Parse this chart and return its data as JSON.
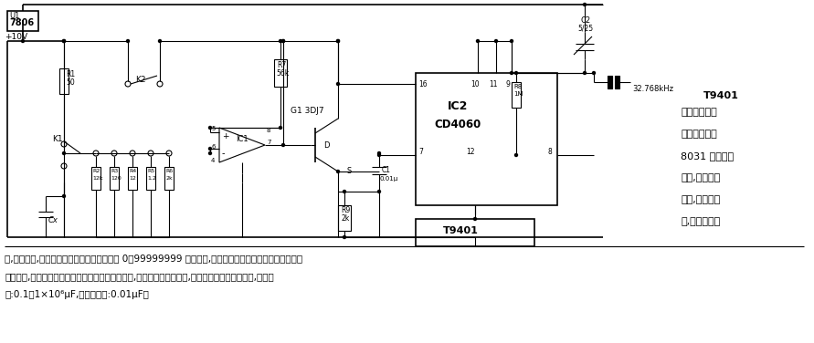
{
  "bg_color": "#ffffff",
  "figsize": [
    8.91,
    3.76
  ],
  "dpi": 100,
  "right_text_lines": [
    "T9401",
    "智能频率计是",
    "以单片计算机",
    "8031 为核心的",
    "产品,具有结构",
    "简单,测量精度",
    "高,质量稳定可"
  ],
  "bottom_text_line1": "靠,携带方便,价格低廉等特点。该仪器有一个 0～99999999 的计数档,该档能对固定的周期和不定周期信号",
  "bottom_text_line2": "进行计量,具有数据保持和清零功能。电容测试电路,就是与此档配合使用,可以测量各种电解电容器,测量范",
  "bottom_text_line3": "围:0.1～1×10⁶μF,最小分辨率:0.01μF。"
}
